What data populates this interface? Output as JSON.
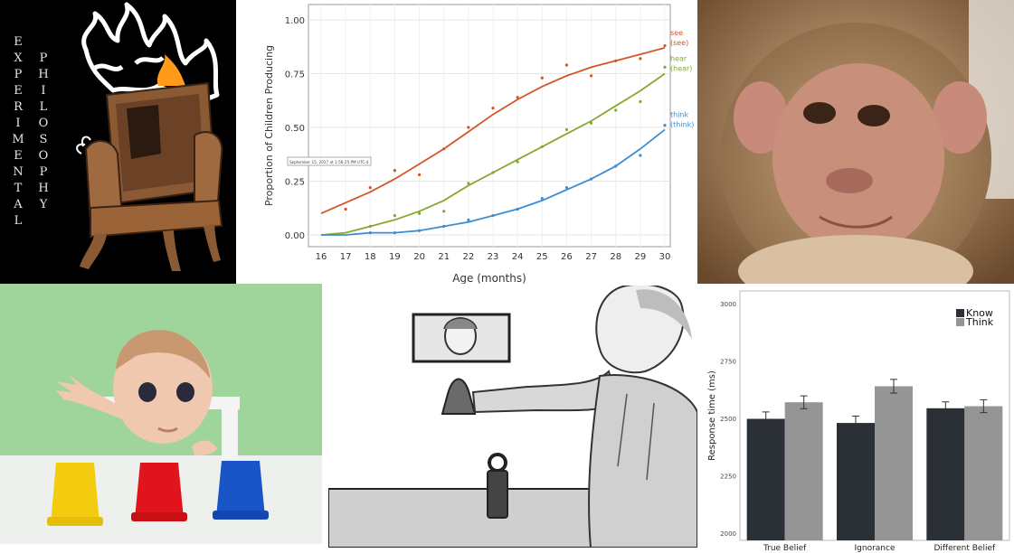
{
  "philosophy_panel": {
    "word1": "EXPERIMENTAL",
    "word2": "PHILOSOPHY"
  },
  "chart_data": [
    {
      "type": "line",
      "title": "",
      "xlabel": "Age (months)",
      "ylabel": "Proportion of Children Producing",
      "x": [
        16,
        17,
        18,
        19,
        20,
        21,
        22,
        23,
        24,
        25,
        26,
        27,
        28,
        29,
        30
      ],
      "xlim": [
        16,
        30
      ],
      "ylim": [
        0,
        1
      ],
      "yticks": [
        "0.00",
        "0.25",
        "0.50",
        "0.75",
        "1.00"
      ],
      "grid": true,
      "tooltip": "September 15, 2017 at 1:56:25 PM UTC-4",
      "series": [
        {
          "name": "see",
          "label": "(see)",
          "color": "#d1572b",
          "fit": [
            0.1,
            0.15,
            0.2,
            0.26,
            0.33,
            0.4,
            0.48,
            0.56,
            0.63,
            0.69,
            0.74,
            0.78,
            0.81,
            0.84,
            0.87
          ],
          "points": [
            null,
            0.12,
            0.22,
            0.3,
            0.28,
            0.4,
            0.5,
            0.59,
            0.64,
            0.73,
            0.79,
            0.74,
            0.81,
            0.82,
            0.88
          ]
        },
        {
          "name": "hear",
          "label": "(hear)",
          "color": "#86a82f",
          "fit": [
            0.0,
            0.01,
            0.04,
            0.07,
            0.11,
            0.16,
            0.23,
            0.29,
            0.35,
            0.41,
            0.47,
            0.53,
            0.6,
            0.67,
            0.75
          ],
          "points": [
            null,
            null,
            0.04,
            0.09,
            0.1,
            0.11,
            0.24,
            0.29,
            0.34,
            0.41,
            0.49,
            0.52,
            0.58,
            0.62,
            0.78
          ]
        },
        {
          "name": "think",
          "label": "(think)",
          "color": "#3b8ed1",
          "fit": [
            0.0,
            0.0,
            0.01,
            0.01,
            0.02,
            0.04,
            0.06,
            0.09,
            0.12,
            0.16,
            0.21,
            0.26,
            0.32,
            0.4,
            0.49
          ],
          "points": [
            null,
            null,
            0.01,
            0.01,
            0.02,
            0.04,
            0.07,
            0.09,
            0.12,
            0.17,
            0.22,
            0.26,
            0.32,
            0.37,
            0.51
          ]
        }
      ]
    },
    {
      "type": "bar",
      "title": "",
      "xlabel": "",
      "ylabel": "Response time (ms)",
      "categories": [
        "True Belief",
        "Ignorance",
        "Different Belief"
      ],
      "ylim": [
        2000,
        3000
      ],
      "yticks": [
        "2000",
        "2250",
        "2500",
        "2750",
        "3000"
      ],
      "legend_position": "top-right",
      "series": [
        {
          "name": "Know",
          "color": "#2a3036",
          "values": [
            2498,
            2480,
            2544
          ],
          "errors": [
            30,
            30,
            28
          ]
        },
        {
          "name": "Think",
          "color": "#959595",
          "values": [
            2570,
            2640,
            2553
          ],
          "errors": [
            28,
            30,
            28
          ]
        }
      ]
    }
  ],
  "colors": {
    "chair": "#8a5a35",
    "flame": "#ffffff",
    "cup_yellow": "#f3cc10",
    "cup_red": "#e0141c",
    "cup_blue": "#1a55c8",
    "baby_bg": "#9fd49a",
    "monkey_face": "#c8907a"
  }
}
